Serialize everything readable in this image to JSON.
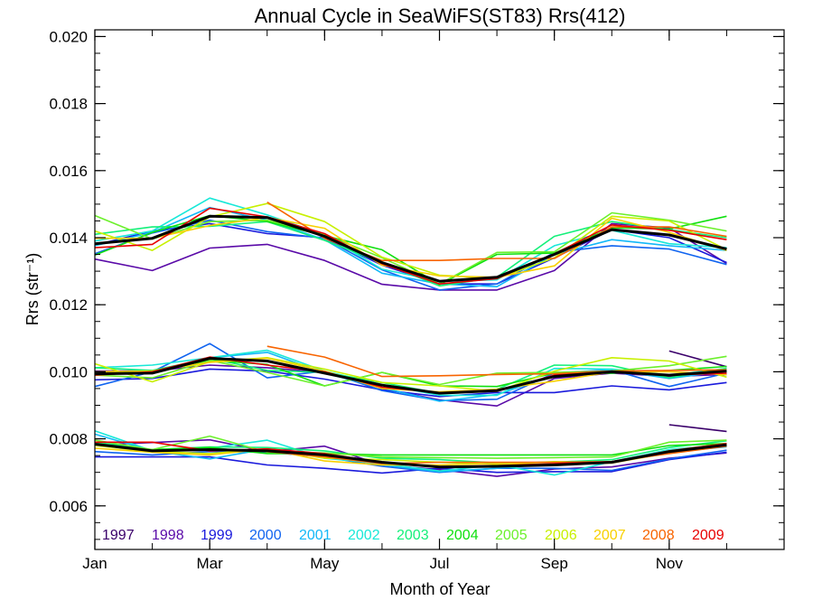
{
  "chart_data": {
    "type": "line",
    "title": "Annual Cycle in SeaWiFS(ST83) Rrs(412)",
    "xlabel": "Month of Year",
    "ylabel": "Rrs (str⁻¹)",
    "xlim": [
      1,
      13
    ],
    "ylim": [
      0.0047,
      0.0202
    ],
    "xticks": [
      "Jan",
      "Mar",
      "May",
      "Jul",
      "Sep",
      "Nov"
    ],
    "yticks": [
      "0.006",
      "0.008",
      "0.010",
      "0.012",
      "0.014",
      "0.016",
      "0.018",
      "0.020"
    ],
    "grid": false,
    "legend_position": "bottom-left inside",
    "x": [
      1,
      2,
      3,
      4,
      5,
      6,
      7,
      8,
      9,
      10,
      11,
      12
    ],
    "series": [
      {
        "name": "1997",
        "color": "#3a006a",
        "upper": [
          null,
          null,
          null,
          null,
          null,
          null,
          null,
          null,
          null,
          null,
          null,
          null
        ],
        "middle": [
          null,
          null,
          null,
          null,
          null,
          null,
          null,
          null,
          null,
          null,
          0.01062,
          0.01015
        ],
        "lower": [
          null,
          null,
          null,
          null,
          null,
          null,
          null,
          null,
          null,
          null,
          0.00842,
          0.00822
        ]
      },
      {
        "name": "1998",
        "color": "#5a0aa8",
        "upper": [
          0.01336,
          0.01302,
          0.01369,
          0.0138,
          0.01332,
          0.01261,
          0.01244,
          0.01244,
          0.01302,
          0.01442,
          0.01429,
          0.01323
        ],
        "middle": [
          0.01002,
          0.01002,
          0.0102,
          0.01012,
          0.00998,
          0.0095,
          0.00916,
          0.00898,
          0.0098,
          0.00996,
          0.00986,
          0.00992
        ],
        "lower": [
          0.00782,
          0.00789,
          0.00797,
          0.00762,
          0.00778,
          0.00722,
          0.00708,
          0.00688,
          0.0071,
          0.00716,
          0.00742,
          0.00758
        ]
      },
      {
        "name": "1999",
        "color": "#1a1adc",
        "upper": [
          0.01378,
          0.0142,
          0.01442,
          0.01412,
          0.014,
          0.01318,
          0.01262,
          0.01262,
          0.0134,
          0.01424,
          0.014,
          0.01326
        ],
        "middle": [
          0.00976,
          0.0098,
          0.01008,
          0.01002,
          0.00978,
          0.00946,
          0.00926,
          0.00938,
          0.00938,
          0.00958,
          0.00946,
          0.00968
        ],
        "lower": [
          0.00746,
          0.00746,
          0.00746,
          0.00722,
          0.00712,
          0.00698,
          0.00712,
          0.007,
          0.00702,
          0.00702,
          0.00738,
          0.0076
        ]
      },
      {
        "name": "2000",
        "color": "#1064f0",
        "upper": [
          0.01352,
          0.01414,
          0.01452,
          0.01418,
          0.01398,
          0.01304,
          0.01244,
          0.01262,
          0.01356,
          0.01376,
          0.01366,
          0.0132
        ],
        "middle": [
          0.00956,
          0.01,
          0.01084,
          0.00982,
          0.01002,
          0.00944,
          0.00914,
          0.00918,
          0.00996,
          0.01006,
          0.00956,
          0.00996
        ],
        "lower": [
          0.00762,
          0.00752,
          0.00762,
          0.0076,
          0.00746,
          0.00718,
          0.007,
          0.00712,
          0.00712,
          0.00706,
          0.0074,
          0.00766
        ]
      },
      {
        "name": "2001",
        "color": "#12b8f8",
        "upper": [
          0.01376,
          0.01416,
          0.0149,
          0.01452,
          0.01394,
          0.01294,
          0.01262,
          0.01254,
          0.0135,
          0.01394,
          0.01376,
          0.01362
        ],
        "middle": [
          0.00994,
          0.00996,
          0.01042,
          0.01058,
          0.00996,
          0.00952,
          0.00912,
          0.00932,
          0.0099,
          0.01006,
          0.0098,
          0.01002
        ],
        "lower": [
          0.00814,
          0.00764,
          0.0074,
          0.0077,
          0.00752,
          0.00722,
          0.00702,
          0.00712,
          0.00726,
          0.0073,
          0.0076,
          0.00776
        ]
      },
      {
        "name": "2002",
        "color": "#18e8d8",
        "upper": [
          0.0139,
          0.0142,
          0.01518,
          0.01468,
          0.01408,
          0.01306,
          0.0127,
          0.01274,
          0.01376,
          0.01422,
          0.01382,
          0.0137
        ],
        "middle": [
          0.01012,
          0.0102,
          0.01042,
          0.01064,
          0.01002,
          0.00962,
          0.0093,
          0.0093,
          0.0101,
          0.01008,
          0.0099,
          0.0101
        ],
        "lower": [
          0.00824,
          0.00764,
          0.00772,
          0.00796,
          0.00742,
          0.00726,
          0.00704,
          0.00722,
          0.00692,
          0.00732,
          0.00768,
          0.00784
        ]
      },
      {
        "name": "2003",
        "color": "#14f07a",
        "upper": [
          0.0141,
          0.01432,
          0.01434,
          0.01448,
          0.01392,
          0.01326,
          0.01256,
          0.01282,
          0.01404,
          0.01448,
          0.01424,
          0.014
        ],
        "middle": [
          0.01012,
          0.01004,
          0.0104,
          0.01004,
          0.00998,
          0.00968,
          0.00936,
          0.00948,
          0.0102,
          0.01018,
          0.00982,
          0.0101
        ],
        "lower": [
          0.0079,
          0.00768,
          0.00776,
          0.00774,
          0.00764,
          0.00742,
          0.00738,
          0.00728,
          0.0073,
          0.00738,
          0.00774,
          0.00794
        ]
      },
      {
        "name": "2004",
        "color": "#10e010",
        "upper": [
          0.01348,
          0.01416,
          0.01466,
          0.01448,
          0.01406,
          0.01364,
          0.0126,
          0.0135,
          0.01354,
          0.0143,
          0.01426,
          0.01464
        ],
        "middle": [
          0.00994,
          0.01002,
          0.01034,
          0.01022,
          0.00958,
          0.00998,
          0.00958,
          0.00956,
          0.00996,
          0.00996,
          0.01004,
          0.01016
        ],
        "lower": [
          0.00782,
          0.00768,
          0.00774,
          0.00756,
          0.00756,
          0.00752,
          0.00752,
          0.00752,
          0.00752,
          0.00752,
          0.0078,
          0.00786
        ]
      },
      {
        "name": "2005",
        "color": "#6cf02c",
        "upper": [
          0.01466,
          0.01396,
          0.01448,
          0.01452,
          0.0141,
          0.0134,
          0.01262,
          0.01356,
          0.01358,
          0.01474,
          0.01452,
          0.0142
        ],
        "middle": [
          0.0099,
          0.00982,
          0.01034,
          0.00998,
          0.00958,
          0.00998,
          0.00962,
          0.00996,
          0.00998,
          0.01002,
          0.01018,
          0.01046
        ],
        "lower": [
          0.00796,
          0.00768,
          0.00808,
          0.0076,
          0.00758,
          0.00746,
          0.00744,
          0.00742,
          0.00744,
          0.00746,
          0.0079,
          0.00796
        ]
      },
      {
        "name": "2006",
        "color": "#c8f000",
        "upper": [
          0.0142,
          0.01362,
          0.01462,
          0.01502,
          0.01448,
          0.01342,
          0.01288,
          0.01278,
          0.0134,
          0.01464,
          0.0145,
          0.01364
        ],
        "middle": [
          0.01024,
          0.0097,
          0.0103,
          0.01042,
          0.01008,
          0.00968,
          0.00958,
          0.00942,
          0.01002,
          0.01042,
          0.01032,
          0.00984
        ],
        "lower": [
          0.0078,
          0.00762,
          0.00756,
          0.0077,
          0.00742,
          0.00738,
          0.0073,
          0.00724,
          0.00732,
          0.00728,
          0.00764,
          0.00786
        ]
      },
      {
        "name": "2007",
        "color": "#f8d000",
        "upper": [
          0.01398,
          0.01398,
          0.01436,
          0.0146,
          0.01428,
          0.01318,
          0.01286,
          0.01282,
          0.01316,
          0.01458,
          0.01416,
          0.01362
        ],
        "middle": [
          0.01,
          0.01002,
          0.01028,
          0.0104,
          0.01002,
          0.0095,
          0.0094,
          0.00948,
          0.00972,
          0.01,
          0.01,
          0.00992
        ],
        "lower": [
          0.00772,
          0.0076,
          0.00752,
          0.0077,
          0.00734,
          0.00722,
          0.00722,
          0.00726,
          0.00724,
          0.00728,
          0.00758,
          0.00782
        ]
      },
      {
        "name": "2008",
        "color": "#f86400",
        "upper": [
          null,
          null,
          null,
          0.01506,
          0.01398,
          0.01332,
          0.01332,
          0.01338,
          0.01338,
          0.01432,
          0.01432,
          0.01404
        ],
        "middle": [
          null,
          null,
          null,
          0.01076,
          0.01044,
          0.00986,
          0.00988,
          0.00992,
          0.00994,
          0.01002,
          0.01004,
          0.01006
        ],
        "lower": [
          null,
          null,
          null,
          0.00762,
          0.00746,
          0.00726,
          0.0073,
          0.0073,
          0.0073,
          0.00732,
          0.00756,
          0.00778
        ]
      },
      {
        "name": "2009",
        "color": "#e80000",
        "upper": [
          0.0137,
          0.0138,
          0.01488,
          0.01462,
          0.01412,
          0.01322,
          0.01262,
          0.01278,
          0.01352,
          0.01438,
          0.01422,
          0.01394
        ],
        "middle": [
          0.0099,
          0.01,
          0.01044,
          0.0102,
          0.01,
          0.00954,
          0.00938,
          0.00942,
          0.0099,
          0.00998,
          0.0099,
          0.00996
        ],
        "lower": [
          0.0079,
          0.0079,
          0.00764,
          0.0077,
          0.00756,
          0.0073,
          0.00716,
          0.0072,
          0.00726,
          0.00732,
          0.00764,
          0.00786
        ]
      },
      {
        "name": "",
        "color": "#000000",
        "upper": [
          0.01382,
          0.01398,
          0.01464,
          0.0146,
          0.01404,
          0.01326,
          0.0127,
          0.01282,
          0.0135,
          0.01424,
          0.01408,
          0.01366
        ],
        "middle": [
          0.00994,
          0.00996,
          0.0104,
          0.01032,
          0.00996,
          0.0096,
          0.00936,
          0.00944,
          0.00986,
          0.01,
          0.0099,
          0.01002
        ],
        "lower": [
          0.00784,
          0.00764,
          0.00768,
          0.00764,
          0.00752,
          0.0073,
          0.00716,
          0.00718,
          0.00722,
          0.0073,
          0.00762,
          0.00782
        ]
      }
    ]
  }
}
